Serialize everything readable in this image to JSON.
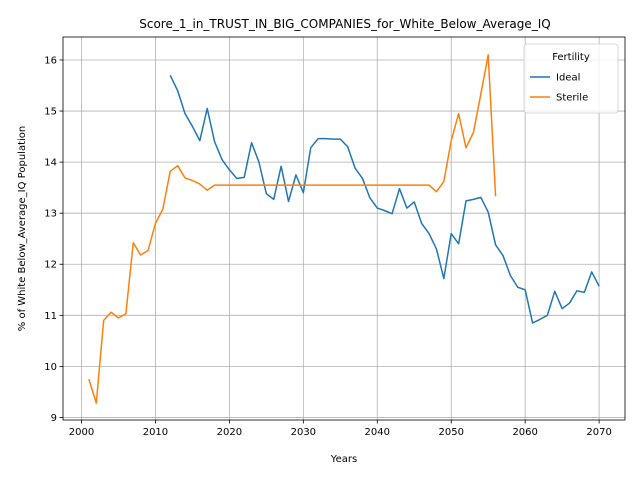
{
  "chart_data": {
    "type": "line",
    "title": "Score_1_in_TRUST_IN_BIG_COMPANIES_for_White_Below_Average_IQ",
    "xlabel": "Years",
    "ylabel": "% of White Below_Average_IQ Population",
    "xlim": [
      1997.5,
      2073.5
    ],
    "ylim": [
      8.95,
      16.45
    ],
    "xticks": [
      2000,
      2010,
      2020,
      2030,
      2040,
      2050,
      2060,
      2070
    ],
    "yticks": [
      9,
      10,
      11,
      12,
      13,
      14,
      15,
      16
    ],
    "grid": true,
    "legend": {
      "title": "Fertility",
      "position": "top-right"
    },
    "series": [
      {
        "name": "Ideal",
        "color": "#1f77b4",
        "x": [
          2012,
          2013,
          2014,
          2015,
          2016,
          2017,
          2018,
          2019,
          2020,
          2021,
          2022,
          2023,
          2024,
          2025,
          2026,
          2027,
          2028,
          2029,
          2030,
          2031,
          2032,
          2033,
          2034,
          2035,
          2036,
          2037,
          2038,
          2039,
          2040,
          2041,
          2042,
          2043,
          2044,
          2045,
          2046,
          2047,
          2048,
          2049,
          2050,
          2051,
          2052,
          2053,
          2054,
          2055,
          2056,
          2057,
          2058,
          2059,
          2060,
          2061,
          2062,
          2063,
          2064,
          2065,
          2066,
          2067,
          2068,
          2069,
          2070
        ],
        "y": [
          15.7,
          15.4,
          14.95,
          14.7,
          14.42,
          15.05,
          14.4,
          14.05,
          13.85,
          13.68,
          13.7,
          14.38,
          14.0,
          13.38,
          13.27,
          13.92,
          13.23,
          13.75,
          13.4,
          14.28,
          14.46,
          14.46,
          14.45,
          14.45,
          14.3,
          13.88,
          13.68,
          13.3,
          13.1,
          13.05,
          12.99,
          13.48,
          13.1,
          13.22,
          12.8,
          12.6,
          12.3,
          11.72,
          12.6,
          12.4,
          13.24,
          13.27,
          13.31,
          13.02,
          12.38,
          12.17,
          11.78,
          11.55,
          11.5,
          10.85,
          10.92,
          11.0,
          11.47,
          11.13,
          11.24,
          11.48,
          11.45,
          11.85,
          11.57
        ]
      },
      {
        "name": "Sterile",
        "color": "#ff7f0e",
        "x": [
          2001,
          2002,
          2003,
          2004,
          2005,
          2006,
          2007,
          2008,
          2009,
          2010,
          2011,
          2012,
          2013,
          2014,
          2015,
          2016,
          2017,
          2018,
          2019,
          2020,
          2021,
          2022,
          2023,
          2024,
          2025,
          2026,
          2027,
          2028,
          2029,
          2030,
          2031,
          2032,
          2033,
          2034,
          2035,
          2036,
          2037,
          2038,
          2039,
          2040,
          2041,
          2042,
          2043,
          2044,
          2045,
          2046,
          2047,
          2048,
          2049,
          2050,
          2051,
          2052,
          2053,
          2054,
          2055,
          2056
        ],
        "y": [
          9.75,
          9.28,
          10.9,
          11.06,
          10.95,
          11.03,
          12.42,
          12.18,
          12.27,
          12.8,
          13.08,
          13.82,
          13.93,
          13.69,
          13.64,
          13.57,
          13.45,
          13.55,
          13.55,
          13.55,
          13.55,
          13.55,
          13.55,
          13.55,
          13.55,
          13.55,
          13.55,
          13.55,
          13.55,
          13.55,
          13.55,
          13.55,
          13.55,
          13.55,
          13.55,
          13.55,
          13.55,
          13.55,
          13.55,
          13.55,
          13.55,
          13.55,
          13.55,
          13.55,
          13.55,
          13.55,
          13.55,
          13.42,
          13.62,
          14.42,
          14.95,
          14.28,
          14.58,
          15.33,
          16.1,
          13.33
        ]
      }
    ]
  }
}
